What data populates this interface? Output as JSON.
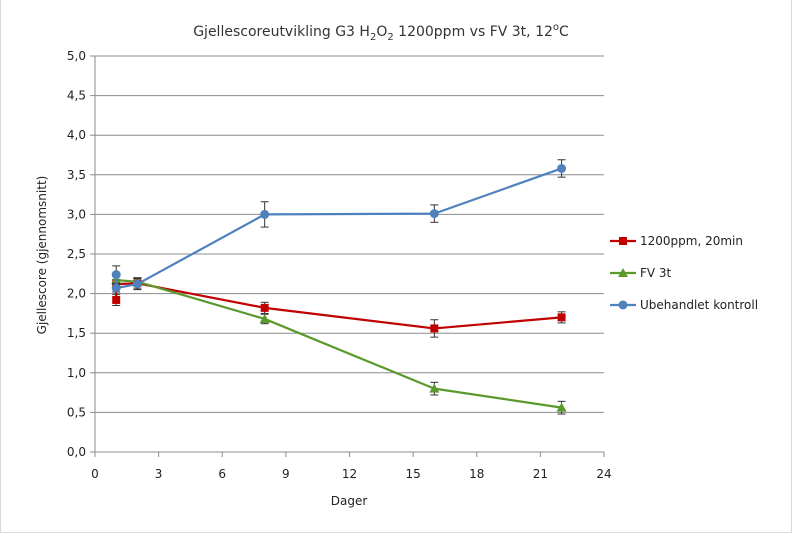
{
  "chart_data": {
    "type": "line",
    "title": {
      "text": "Gjellescoreutvikling G3 H",
      "sub1": "2",
      "mid1": "O",
      "sub2": "2",
      "mid2": " 1200ppm vs FV 3t, 12",
      "sup": "o",
      "end": "C"
    },
    "xlabel": "Dager",
    "ylabel": "Gjellescore (gjennomsnitt)",
    "xlim": [
      0,
      24
    ],
    "ylim": [
      0,
      5.0
    ],
    "x_ticks": [
      {
        "value": 0,
        "label": "0"
      },
      {
        "value": 3,
        "label": "3"
      },
      {
        "value": 6,
        "label": "6"
      },
      {
        "value": 9,
        "label": "9"
      },
      {
        "value": 12,
        "label": "12"
      },
      {
        "value": 15,
        "label": "15"
      },
      {
        "value": 18,
        "label": "18"
      },
      {
        "value": 21,
        "label": "21"
      },
      {
        "value": 24,
        "label": "24"
      }
    ],
    "y_ticks": [
      {
        "value": 0,
        "label": "0,0"
      },
      {
        "value": 0.5,
        "label": "0,5"
      },
      {
        "value": 1.0,
        "label": "1,0"
      },
      {
        "value": 1.5,
        "label": "1,5"
      },
      {
        "value": 2.0,
        "label": "2,0"
      },
      {
        "value": 2.5,
        "label": "2,5"
      },
      {
        "value": 3.0,
        "label": "3,0"
      },
      {
        "value": 3.5,
        "label": "3,5"
      },
      {
        "value": 4.0,
        "label": "4,0"
      },
      {
        "value": 4.5,
        "label": "4,5"
      },
      {
        "value": 5.0,
        "label": "5,0"
      }
    ],
    "grid": "horizontal",
    "legend_position": "right",
    "series": [
      {
        "name": "1200ppm, 20min",
        "color": "#c00000",
        "marker": "square",
        "points": [
          {
            "x": 1,
            "y": 1.92,
            "err": 0.07
          },
          {
            "x": 1,
            "y": 2.12,
            "err": 0.06
          },
          {
            "x": 2,
            "y": 2.13,
            "err": 0.07
          },
          {
            "x": 8,
            "y": 1.82,
            "err": 0.07
          },
          {
            "x": 16,
            "y": 1.56,
            "err": 0.11
          },
          {
            "x": 22,
            "y": 1.7,
            "err": 0.07
          }
        ]
      },
      {
        "name": "FV 3t",
        "color": "#5a9a2c",
        "marker": "triangle",
        "points": [
          {
            "x": 1,
            "y": 2.17,
            "err": 0.05
          },
          {
            "x": 2,
            "y": 2.15,
            "err": 0.05
          },
          {
            "x": 8,
            "y": 1.68,
            "err": 0.06
          },
          {
            "x": 16,
            "y": 0.8,
            "err": 0.08
          },
          {
            "x": 22,
            "y": 0.56,
            "err": 0.08
          }
        ]
      },
      {
        "name": "Ubehandlet kontroll",
        "color": "#4f81bd",
        "marker": "circle",
        "points": [
          {
            "x": 1,
            "y": 2.24,
            "err": 0.11
          },
          {
            "x": 1,
            "y": 2.07,
            "err": 0.05
          },
          {
            "x": 2,
            "y": 2.12,
            "err": 0.07
          },
          {
            "x": 8,
            "y": 3.0,
            "err": 0.16
          },
          {
            "x": 16,
            "y": 3.01,
            "err": 0.11
          },
          {
            "x": 22,
            "y": 3.58,
            "err": 0.11
          }
        ]
      }
    ]
  }
}
